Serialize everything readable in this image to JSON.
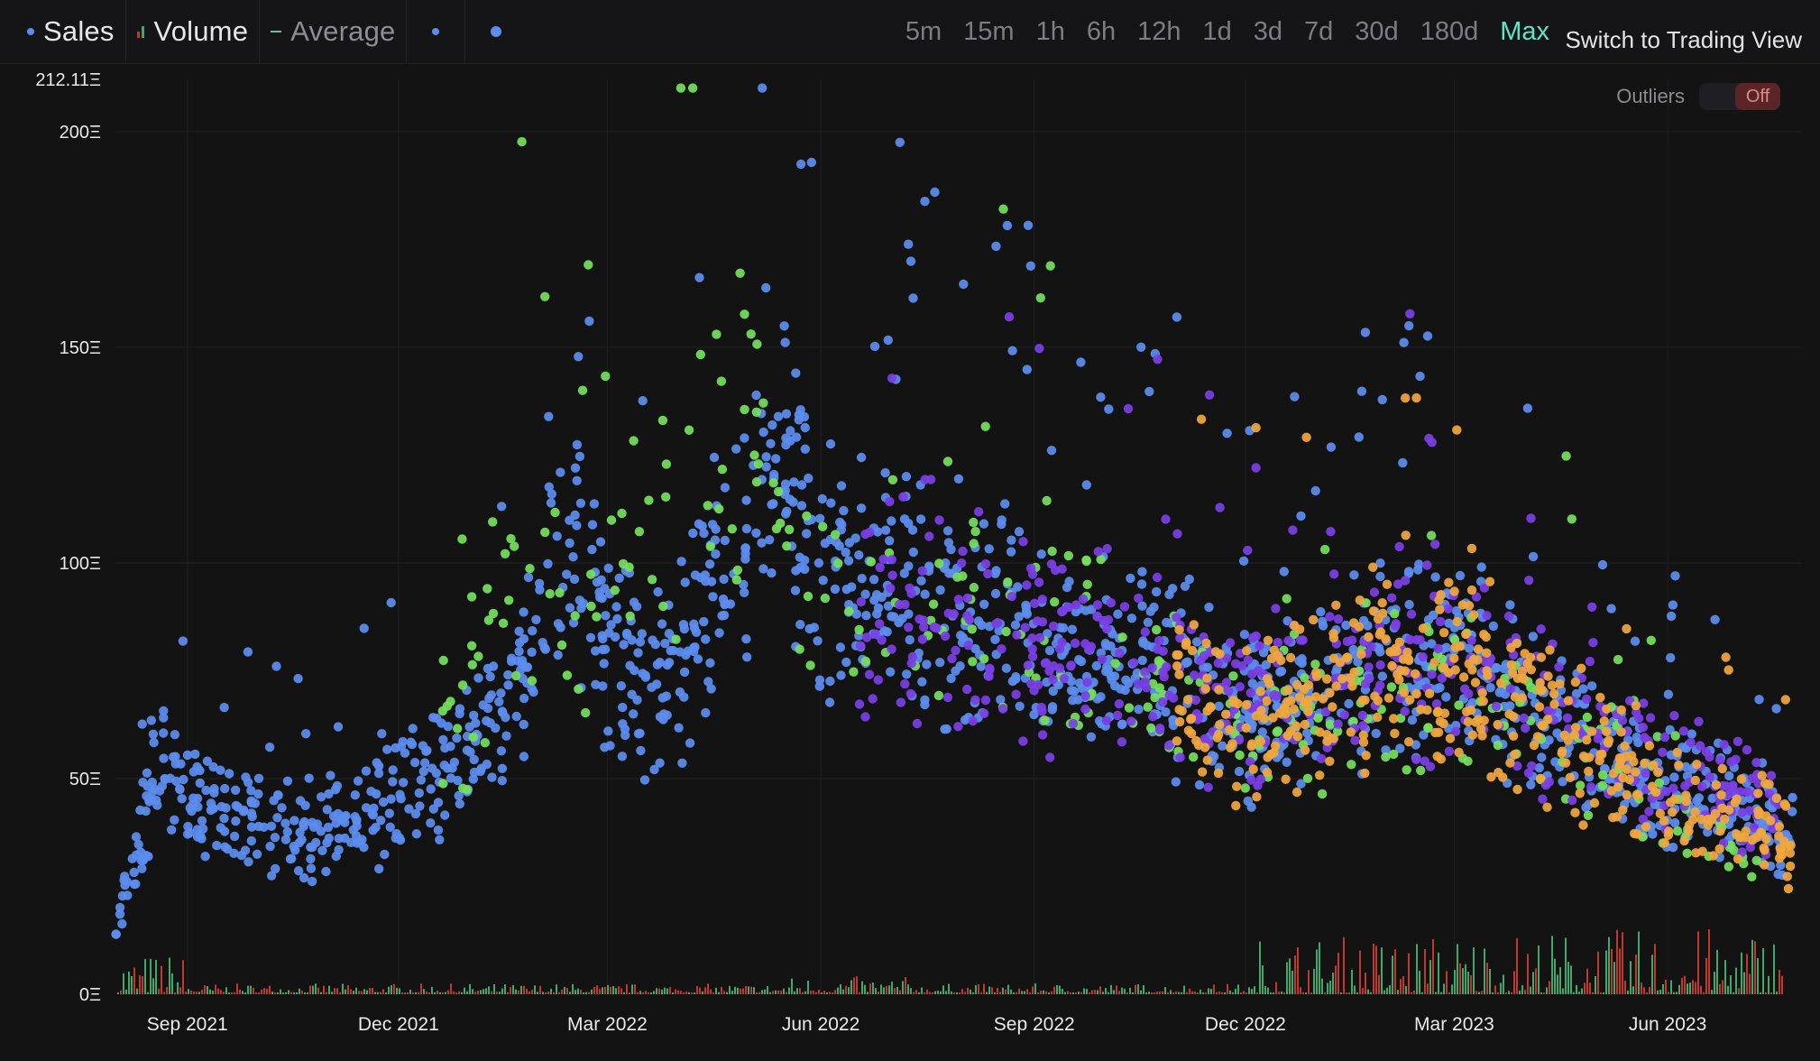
{
  "legend": {
    "sales_label": "Sales",
    "volume_label": "Volume",
    "average_label": "Average"
  },
  "ranges": [
    {
      "label": "5m",
      "active": false
    },
    {
      "label": "15m",
      "active": false
    },
    {
      "label": "1h",
      "active": false
    },
    {
      "label": "6h",
      "active": false
    },
    {
      "label": "12h",
      "active": false
    },
    {
      "label": "1d",
      "active": false
    },
    {
      "label": "3d",
      "active": false
    },
    {
      "label": "7d",
      "active": false
    },
    {
      "label": "30d",
      "active": false
    },
    {
      "label": "180d",
      "active": false
    },
    {
      "label": "Max",
      "active": true
    }
  ],
  "switch_label": "Switch to Trading View",
  "outliers": {
    "label": "Outliers",
    "state": "Off"
  },
  "colors": {
    "background": "#131314",
    "sales_blue": "#5b8def",
    "sales_green": "#74e05c",
    "sales_purple": "#7b3fe6",
    "sales_orange": "#f0a73f",
    "volume_green": "#3fa96b",
    "volume_red": "#c0392b",
    "active_range": "#5fe3c6"
  },
  "chart_data": {
    "type": "scatter",
    "title": "",
    "xlabel": "",
    "ylabel": "",
    "x_range": [
      "2021-08-01",
      "2023-07-25"
    ],
    "ylim": [
      0,
      212.11
    ],
    "y_ticks": [
      {
        "label": "0Ξ",
        "value": 0
      },
      {
        "label": "50Ξ",
        "value": 50
      },
      {
        "label": "100Ξ",
        "value": 100
      },
      {
        "label": "150Ξ",
        "value": 150
      },
      {
        "label": "200Ξ",
        "value": 200
      },
      {
        "label": "212.11Ξ",
        "value": 212.11
      }
    ],
    "x_ticks": [
      {
        "label": "Sep 2021",
        "date": "2021-09-01"
      },
      {
        "label": "Dec 2021",
        "date": "2021-12-01"
      },
      {
        "label": "Mar 2022",
        "date": "2022-03-01"
      },
      {
        "label": "Jun 2022",
        "date": "2022-06-01"
      },
      {
        "label": "Sep 2022",
        "date": "2022-09-01"
      },
      {
        "label": "Dec 2022",
        "date": "2022-12-01"
      },
      {
        "label": "Mar 2023",
        "date": "2023-03-01"
      },
      {
        "label": "Jun 2023",
        "date": "2023-06-01"
      }
    ],
    "grid": true,
    "series": [
      {
        "name": "Sales",
        "color": "#5b8def",
        "x": [
          "2021-08-01",
          "2021-08-10",
          "2021-08-20",
          "2021-09-01",
          "2021-09-15",
          "2021-10-01",
          "2021-10-15",
          "2021-11-01",
          "2021-11-15",
          "2021-12-01",
          "2021-12-15",
          "2022-01-01",
          "2022-01-15",
          "2022-02-01",
          "2022-02-15",
          "2022-03-01",
          "2022-03-15",
          "2022-04-01",
          "2022-04-15",
          "2022-05-01",
          "2022-05-15",
          "2022-06-01",
          "2022-06-15",
          "2022-07-01",
          "2022-07-15",
          "2022-08-01",
          "2022-08-15",
          "2022-09-01",
          "2022-09-15",
          "2022-10-01",
          "2022-10-15",
          "2022-11-01",
          "2022-11-15",
          "2022-12-01",
          "2022-12-15",
          "2023-01-01",
          "2023-01-15",
          "2023-02-01",
          "2023-02-15",
          "2023-03-01",
          "2023-03-15",
          "2023-04-01",
          "2023-04-15",
          "2023-05-01",
          "2023-05-15",
          "2023-06-01",
          "2023-06-15",
          "2023-07-01",
          "2023-07-15",
          "2023-07-25"
        ],
        "values": [
          15,
          30,
          55,
          45,
          42,
          40,
          38,
          37,
          40,
          46,
          50,
          56,
          66,
          88,
          102,
          82,
          72,
          75,
          98,
          108,
          122,
          102,
          93,
          97,
          93,
          88,
          90,
          84,
          73,
          79,
          76,
          75,
          70,
          65,
          68,
          70,
          74,
          80,
          74,
          80,
          76,
          66,
          61,
          57,
          52,
          47,
          45,
          44,
          40,
          35
        ]
      },
      {
        "name": "",
        "color": "#74e05c",
        "x": [
          "2021-12-20",
          "2022-01-01",
          "2022-01-10",
          "2022-01-20",
          "2022-02-01",
          "2022-02-15",
          "2022-03-01",
          "2022-03-10",
          "2022-03-20",
          "2022-04-01",
          "2022-04-15",
          "2022-05-01",
          "2022-05-10",
          "2022-05-20",
          "2022-06-01",
          "2022-06-15",
          "2022-07-01",
          "2022-07-15",
          "2022-12-01",
          "2023-01-01",
          "2023-02-01",
          "2023-03-01",
          "2023-04-01",
          "2023-06-01",
          "2023-07-10"
        ],
        "values": [
          60,
          70,
          80,
          95,
          105,
          90,
          80,
          100,
          110,
          115,
          120,
          130,
          118,
          95,
          90,
          92,
          95,
          97,
          62,
          66,
          75,
          70,
          65,
          50,
          28
        ]
      },
      {
        "name": "",
        "color": "#7b3fe6",
        "x": [
          "2022-06-15",
          "2022-07-01",
          "2022-07-15",
          "2022-08-01",
          "2022-08-15",
          "2022-09-01",
          "2022-09-15",
          "2022-10-01",
          "2022-10-15",
          "2022-11-01",
          "2022-11-15",
          "2022-12-01",
          "2022-12-15",
          "2023-01-01",
          "2023-01-15",
          "2023-02-01",
          "2023-02-15",
          "2023-03-01",
          "2023-03-15",
          "2023-04-01",
          "2023-04-15",
          "2023-05-01",
          "2023-05-15",
          "2023-06-01",
          "2023-06-15",
          "2023-07-01",
          "2023-07-20"
        ],
        "values": [
          95,
          92,
          90,
          85,
          83,
          80,
          75,
          78,
          76,
          74,
          70,
          68,
          70,
          70,
          73,
          78,
          74,
          78,
          75,
          67,
          63,
          60,
          55,
          52,
          50,
          47,
          45
        ]
      },
      {
        "name": "",
        "color": "#f0a73f",
        "x": [
          "2022-11-01",
          "2022-11-15",
          "2022-12-01",
          "2022-12-15",
          "2023-01-01",
          "2023-01-15",
          "2023-02-01",
          "2023-02-15",
          "2023-03-01",
          "2023-03-15",
          "2023-04-01",
          "2023-04-15",
          "2023-05-01",
          "2023-05-15",
          "2023-06-01",
          "2023-06-15",
          "2023-07-01",
          "2023-07-15",
          "2023-07-25"
        ],
        "values": [
          68,
          66,
          62,
          66,
          68,
          72,
          78,
          72,
          76,
          74,
          66,
          60,
          56,
          52,
          46,
          44,
          44,
          40,
          32
        ]
      }
    ],
    "volume_colors": [
      "#3fa96b",
      "#c0392b"
    ]
  }
}
